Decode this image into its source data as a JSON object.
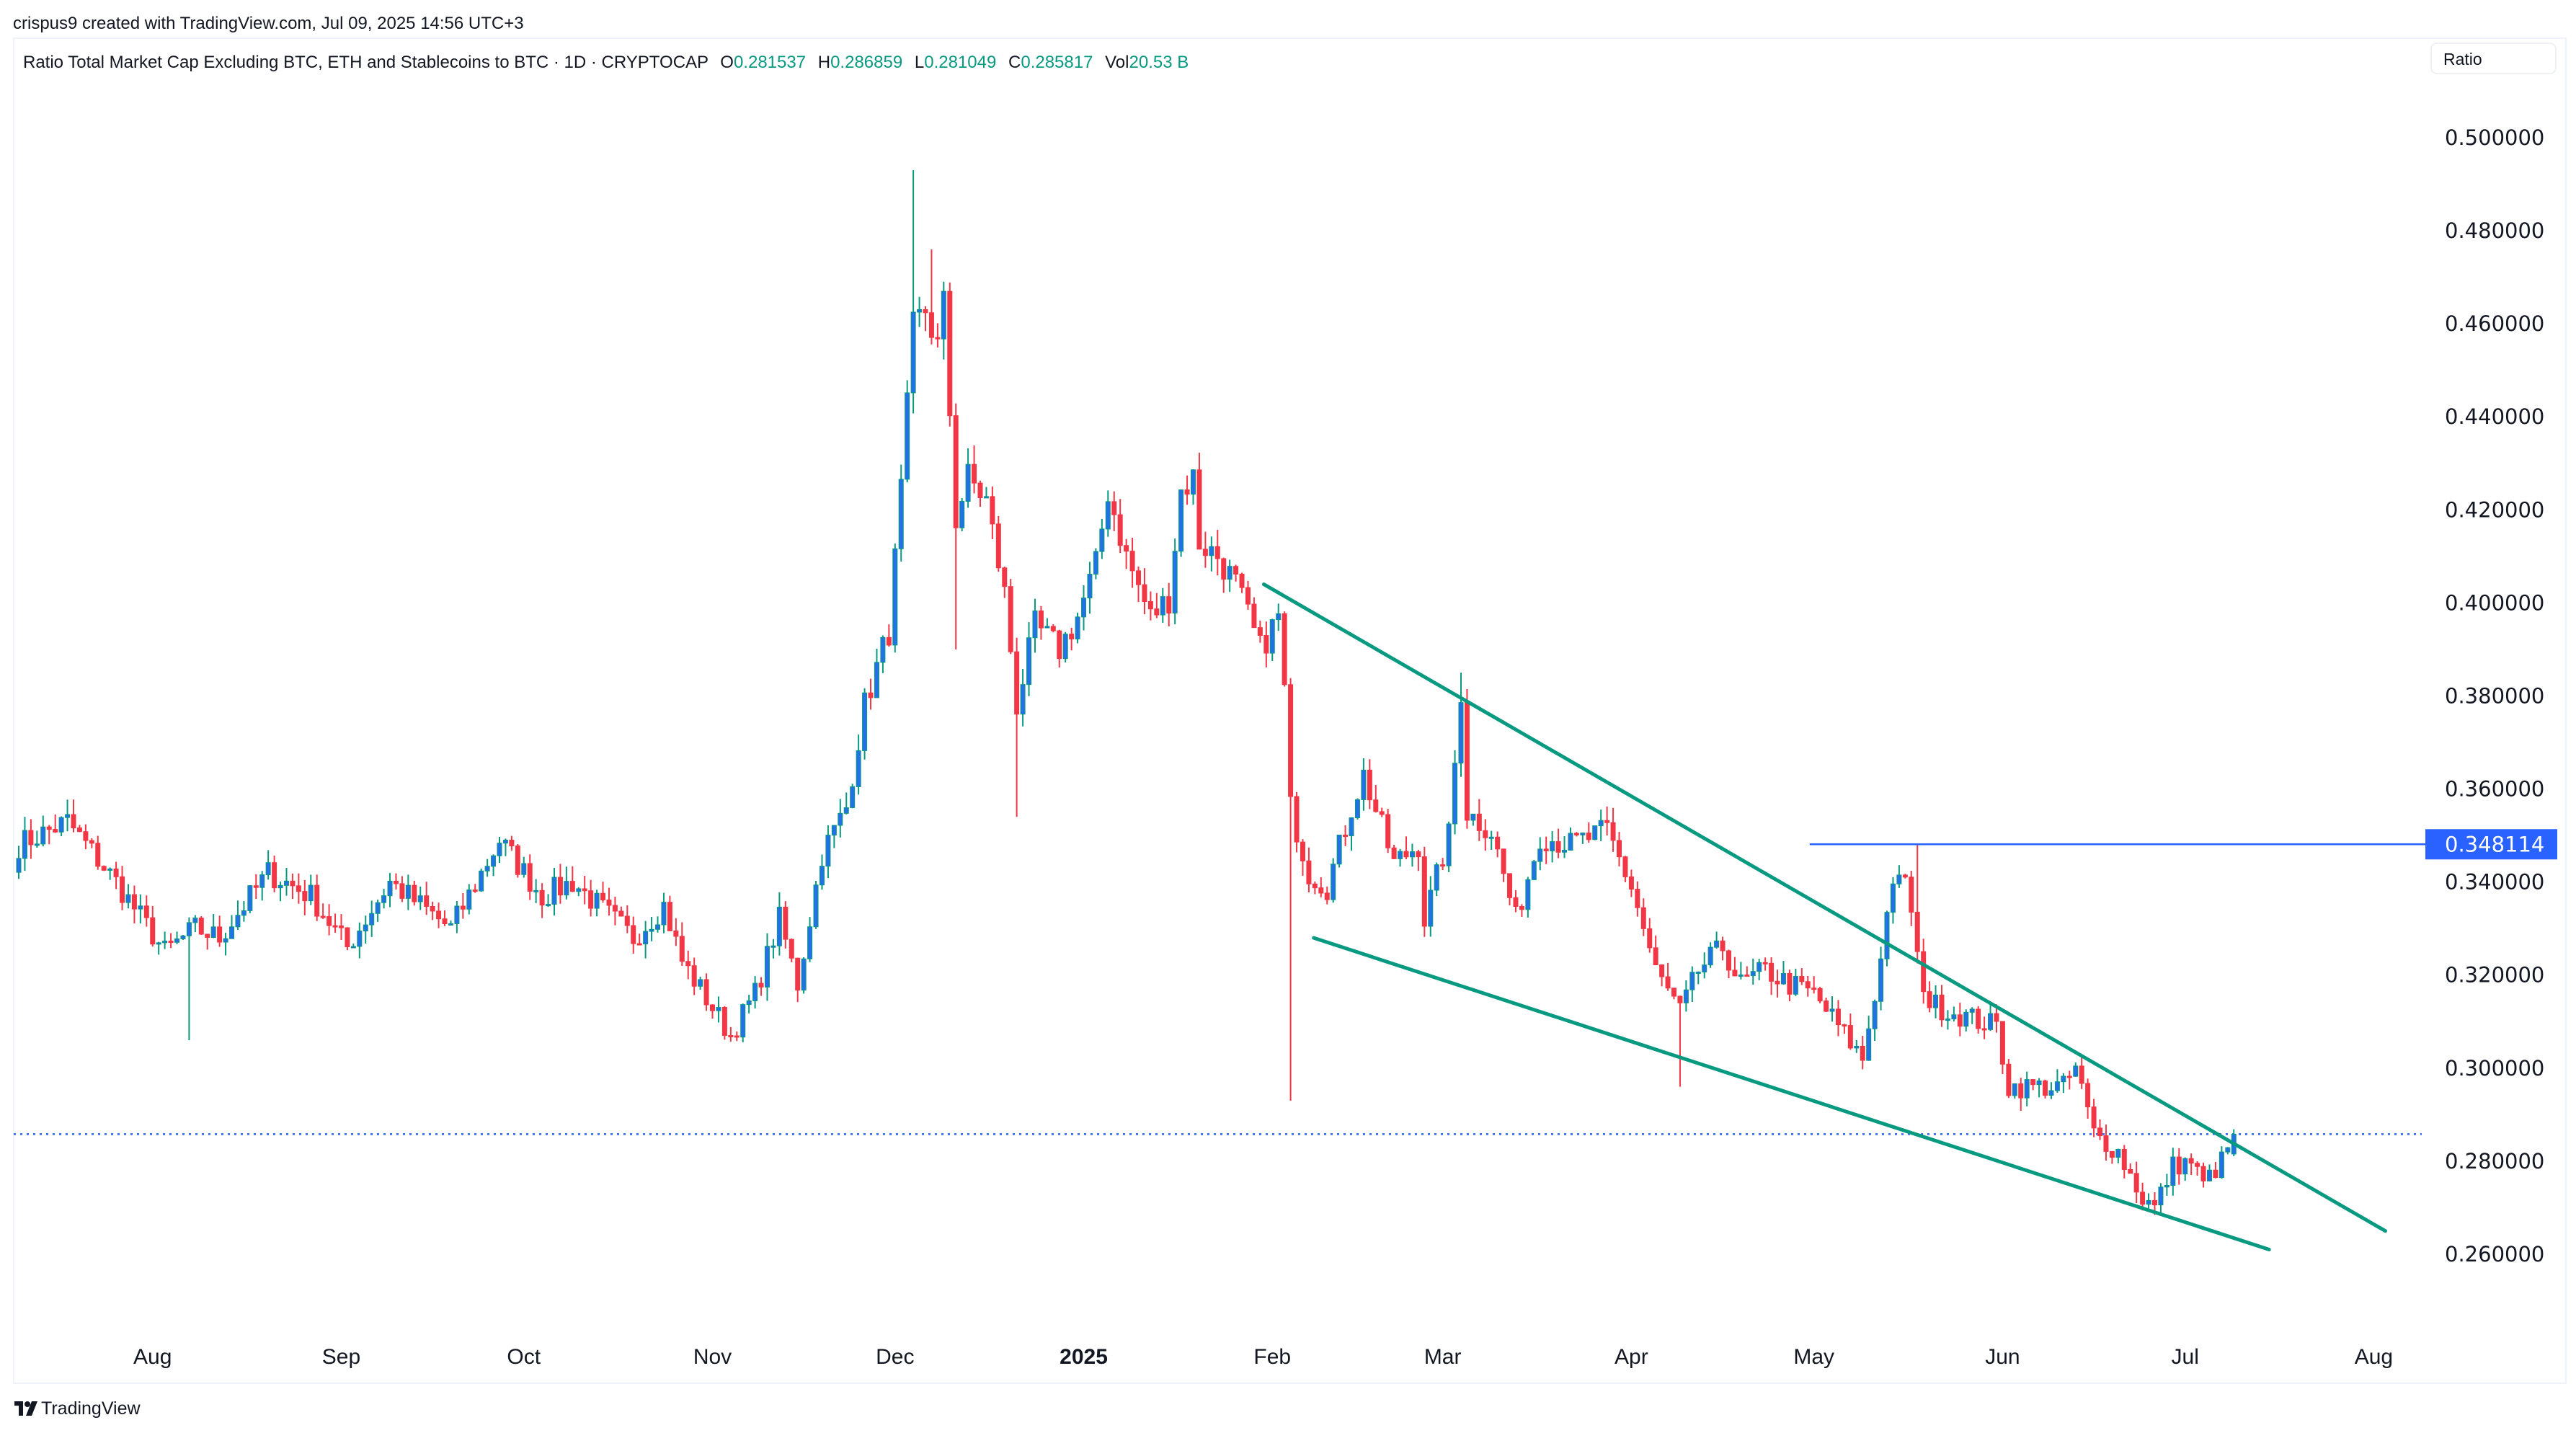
{
  "watermark": "crispus9 created with TradingView.com, Jul 09, 2025 14:56 UTC+3",
  "legend": {
    "title": "Ratio Total Market Cap Excluding BTC, ETH and Stablecoins to BTC · 1D · CRYPTOCAP",
    "o_label": "O",
    "o_value": "0.281537",
    "h_label": "H",
    "h_value": "0.286859",
    "l_label": "L",
    "l_value": "0.281049",
    "c_label": "C",
    "c_value": "0.285817",
    "vol_label": "Vol",
    "vol_value": "20.53 B"
  },
  "scale_button": "Ratio",
  "logo_text": "TradingView",
  "colors": {
    "up_body": "#2371e6",
    "up_wick": "#089981",
    "down": "#f23645",
    "trendline": "#089981",
    "hline": "#2962ff"
  },
  "chart_data": {
    "type": "candlestick",
    "title": "Ratio Total Market Cap Excluding BTC, ETH and Stablecoins to BTC",
    "interval": "1D",
    "ylim": [
      0.25,
      0.5
    ],
    "y_ticks": [
      "0.500000",
      "0.480000",
      "0.460000",
      "0.440000",
      "0.420000",
      "0.400000",
      "0.380000",
      "0.360000",
      "0.340000",
      "0.320000",
      "0.300000",
      "0.280000",
      "0.260000"
    ],
    "x_ticks": [
      {
        "label": "Aug",
        "day": 22
      },
      {
        "label": "Sep",
        "day": 53
      },
      {
        "label": "Oct",
        "day": 83
      },
      {
        "label": "Nov",
        "day": 114
      },
      {
        "label": "Dec",
        "day": 144
      },
      {
        "label": "2025",
        "day": 175,
        "bold": true
      },
      {
        "label": "Feb",
        "day": 206
      },
      {
        "label": "Mar",
        "day": 234
      },
      {
        "label": "Apr",
        "day": 265
      },
      {
        "label": "May",
        "day": 295
      },
      {
        "label": "Jun",
        "day": 326
      },
      {
        "label": "Jul",
        "day": 356
      },
      {
        "label": "Aug",
        "day": 387
      }
    ],
    "day0": "2024-07-10",
    "close_keypoints": [
      [
        0,
        0.348
      ],
      [
        8,
        0.353
      ],
      [
        16,
        0.34
      ],
      [
        24,
        0.325
      ],
      [
        29,
        0.33
      ],
      [
        33,
        0.328
      ],
      [
        41,
        0.342
      ],
      [
        48,
        0.337
      ],
      [
        54,
        0.326
      ],
      [
        61,
        0.34
      ],
      [
        71,
        0.33
      ],
      [
        79,
        0.349
      ],
      [
        86,
        0.337
      ],
      [
        91,
        0.34
      ],
      [
        101,
        0.328
      ],
      [
        106,
        0.335
      ],
      [
        109,
        0.323
      ],
      [
        117,
        0.307
      ],
      [
        121,
        0.316
      ],
      [
        125,
        0.332
      ],
      [
        128,
        0.318
      ],
      [
        132,
        0.346
      ],
      [
        136,
        0.356
      ],
      [
        139,
        0.378
      ],
      [
        143,
        0.394
      ],
      [
        145,
        0.424
      ],
      [
        147,
        0.459
      ],
      [
        149,
        0.463
      ],
      [
        151,
        0.455
      ],
      [
        152,
        0.464
      ],
      [
        154,
        0.418
      ],
      [
        156,
        0.427
      ],
      [
        159,
        0.422
      ],
      [
        162,
        0.402
      ],
      [
        164,
        0.378
      ],
      [
        167,
        0.395
      ],
      [
        171,
        0.39
      ],
      [
        174,
        0.397
      ],
      [
        177,
        0.408
      ],
      [
        179,
        0.424
      ],
      [
        182,
        0.41
      ],
      [
        186,
        0.397
      ],
      [
        189,
        0.401
      ],
      [
        191,
        0.424
      ],
      [
        193,
        0.427
      ],
      [
        194,
        0.413
      ],
      [
        197,
        0.41
      ],
      [
        200,
        0.404
      ],
      [
        204,
        0.39
      ],
      [
        207,
        0.397
      ],
      [
        208,
        0.381
      ],
      [
        209,
        0.356
      ],
      [
        212,
        0.342
      ],
      [
        215,
        0.339
      ],
      [
        219,
        0.356
      ],
      [
        221,
        0.363
      ],
      [
        226,
        0.344
      ],
      [
        230,
        0.348
      ],
      [
        231,
        0.332
      ],
      [
        235,
        0.35
      ],
      [
        237,
        0.381
      ],
      [
        238,
        0.355
      ],
      [
        242,
        0.351
      ],
      [
        246,
        0.332
      ],
      [
        250,
        0.35
      ],
      [
        255,
        0.348
      ],
      [
        261,
        0.351
      ],
      [
        265,
        0.339
      ],
      [
        269,
        0.321
      ],
      [
        273,
        0.312
      ],
      [
        276,
        0.321
      ],
      [
        280,
        0.326
      ],
      [
        283,
        0.318
      ],
      [
        287,
        0.321
      ],
      [
        291,
        0.318
      ],
      [
        295,
        0.316
      ],
      [
        299,
        0.309
      ],
      [
        303,
        0.302
      ],
      [
        306,
        0.323
      ],
      [
        307,
        0.335
      ],
      [
        310,
        0.342
      ],
      [
        312,
        0.323
      ],
      [
        314,
        0.314
      ],
      [
        320,
        0.311
      ],
      [
        325,
        0.309
      ],
      [
        327,
        0.296
      ],
      [
        332,
        0.296
      ],
      [
        336,
        0.296
      ],
      [
        338,
        0.3
      ],
      [
        341,
        0.286
      ],
      [
        345,
        0.282
      ],
      [
        349,
        0.272
      ],
      [
        351,
        0.27
      ],
      [
        354,
        0.279
      ],
      [
        357,
        0.28
      ],
      [
        359,
        0.275
      ],
      [
        362,
        0.28
      ],
      [
        364,
        0.285817
      ]
    ],
    "wick_extremes": [
      {
        "day": 147,
        "high": 0.493
      },
      {
        "day": 209,
        "low": 0.293
      },
      {
        "day": 237,
        "high": 0.385
      },
      {
        "day": 273,
        "low": 0.296
      },
      {
        "day": 28,
        "low": 0.306
      },
      {
        "day": 312,
        "high": 0.348114
      },
      {
        "day": 164,
        "low": 0.354
      },
      {
        "day": 154,
        "low": 0.39
      },
      {
        "day": 150,
        "high": 0.476
      }
    ],
    "last_candle": {
      "open": 0.281537,
      "high": 0.286859,
      "low": 0.281049,
      "close": 0.285817
    },
    "trendlines": [
      {
        "name": "upper-wedge",
        "from": [
          204.6,
          0.404
        ],
        "to": [
          388.9,
          0.265
        ]
      },
      {
        "name": "lower-wedge",
        "from": [
          212.8,
          0.328
        ],
        "to": [
          369.8,
          0.261
        ]
      }
    ],
    "horizontal_line": {
      "value": 0.348114,
      "label": "0.348114",
      "from_day": 294.3
    },
    "last_price_line": 0.285817
  }
}
